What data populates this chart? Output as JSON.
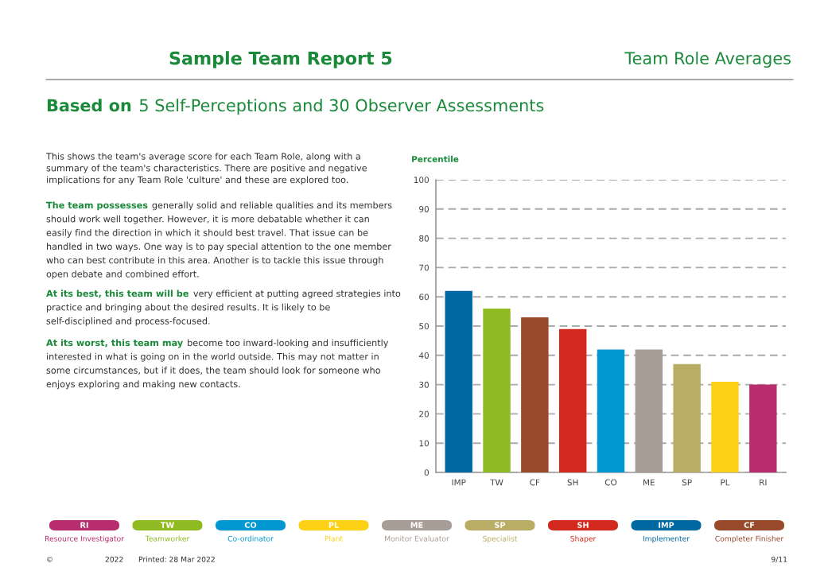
{
  "chart_data": {
    "type": "bar",
    "title": "Sample Team Report 5",
    "subtitle": "Team Role Averages",
    "ylabel": "Percentile",
    "categories": [
      "IMP",
      "TW",
      "CF",
      "SH",
      "CO",
      "ME",
      "SP",
      "PL",
      "RI"
    ],
    "values": [
      62,
      56,
      53,
      49,
      42,
      42,
      37,
      31,
      30
    ],
    "colors": [
      "#0068a3",
      "#8fba21",
      "#994a2d",
      "#d2291e",
      "#0097d3",
      "#a89c97",
      "#b9ac64",
      "#fdd116",
      "#b82d6e"
    ],
    "ylim": [
      0,
      100
    ],
    "yticks": [
      0,
      10,
      20,
      30,
      40,
      50,
      60,
      70,
      80,
      90,
      100
    ],
    "grid": "y",
    "annotations": [
      "Based on",
      "5 Self-Perceptions and 30 Observer Assessments",
      "This shows the team's average score for each Team Role, along with a\nsummary of the team's characteristics. There are positive and negative\nimplications for any Team Role 'culture' and these are explored too.",
      "The team possesses",
      "generally solid and reliable qualities and its members\nshould work well together. However, it is more debatable whether it can\neasily find the direction in which it should best travel. That issue can be\nhandled in two ways. One way is to pay special attention to the one member\nwho can best contribute in this area. Another is to tackle this issue through\nopen debate and combined effort.",
      "At its best, this team will be",
      "very efficient at putting agreed strategies into\npractice and bringing about the desired results. It is likely to be\nself-disciplined and process-focused.",
      "At its worst, this team may",
      "become too inward-looking and insufficiently\ninterested in what is going on in the world outside. This may not matter in\nsome circumstances, but if it does, the team should look for someone who\nenjoys exploring and making new contacts.",
      "©",
      "2022",
      "Printed: 28 Mar 2022",
      "9/11",
      "Resource Investigator",
      "Teamworker",
      "Co-ordinator",
      "Plant",
      "Monitor Evaluator",
      "Specialist",
      "Shaper",
      "Implementer",
      "Completer Finisher"
    ]
  }
}
